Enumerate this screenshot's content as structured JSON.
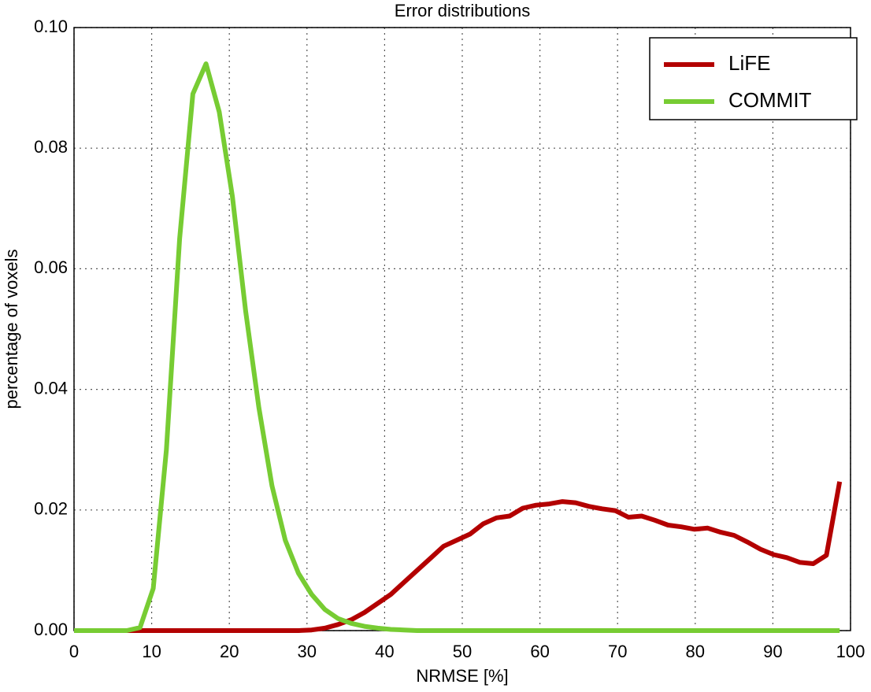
{
  "chart_data": {
    "type": "line",
    "title": "Error distributions",
    "x_label": "NRMSE [%]",
    "y_label": "percentage of voxels",
    "x": [
      0,
      1.7,
      3.4,
      5.1,
      6.8,
      8.5,
      10.2,
      11.9,
      13.6,
      15.3,
      17.0,
      18.7,
      20.4,
      22.1,
      23.8,
      25.5,
      27.2,
      28.9,
      30.6,
      32.3,
      34.0,
      35.7,
      37.4,
      39.1,
      40.8,
      42.5,
      44.2,
      45.9,
      47.6,
      49.3,
      51.0,
      52.7,
      54.4,
      56.1,
      57.8,
      59.5,
      61.2,
      62.9,
      64.6,
      66.3,
      68.0,
      69.7,
      71.4,
      73.1,
      74.8,
      76.5,
      78.2,
      79.9,
      81.6,
      83.3,
      85.0,
      86.7,
      88.4,
      90.1,
      91.8,
      93.5,
      95.2,
      96.9,
      98.6
    ],
    "series": [
      {
        "name": "LiFE",
        "color": "#b30000",
        "values": [
          0,
          0,
          0,
          0,
          0,
          0,
          0,
          0,
          0,
          0,
          0,
          0,
          0,
          0,
          0,
          0,
          0,
          0,
          0.0001,
          0.0004,
          0.001,
          0.0018,
          0.003,
          0.0045,
          0.006,
          0.008,
          0.01,
          0.012,
          0.014,
          0.015,
          0.016,
          0.0177,
          0.0187,
          0.019,
          0.0203,
          0.0208,
          0.021,
          0.0214,
          0.0212,
          0.0206,
          0.0202,
          0.0199,
          0.0188,
          0.019,
          0.0183,
          0.0175,
          0.0172,
          0.0168,
          0.017,
          0.0163,
          0.0158,
          0.0147,
          0.0135,
          0.0126,
          0.0121,
          0.0113,
          0.0111,
          0.0125,
          0.0247
        ]
      },
      {
        "name": "COMMIT",
        "color": "#77cc33",
        "values": [
          0,
          0,
          0,
          0,
          0,
          0.0005,
          0.007,
          0.03,
          0.065,
          0.089,
          0.094,
          0.086,
          0.072,
          0.053,
          0.037,
          0.024,
          0.015,
          0.0095,
          0.006,
          0.0035,
          0.002,
          0.0012,
          0.0007,
          0.0004,
          0.0002,
          0.0001,
          0,
          0,
          0,
          0,
          0,
          0,
          0,
          0,
          0,
          0,
          0,
          0,
          0,
          0,
          0,
          0,
          0,
          0,
          0,
          0,
          0,
          0,
          0,
          0,
          0,
          0,
          0,
          0,
          0,
          0,
          0,
          0,
          0
        ]
      }
    ],
    "xlim": [
      0,
      100
    ],
    "ylim": [
      0,
      0.1
    ],
    "xticks": [
      0,
      10,
      20,
      30,
      40,
      50,
      60,
      70,
      80,
      90,
      100
    ],
    "yticks": [
      {
        "value": 0,
        "label": "0.00"
      },
      {
        "value": 0.02,
        "label": "0.02"
      },
      {
        "value": 0.04,
        "label": "0.04"
      },
      {
        "value": 0.06,
        "label": "0.06"
      },
      {
        "value": 0.08,
        "label": "0.08"
      },
      {
        "value": 0.1,
        "label": "0.10"
      }
    ],
    "grid": true,
    "legend": "upper-right"
  }
}
